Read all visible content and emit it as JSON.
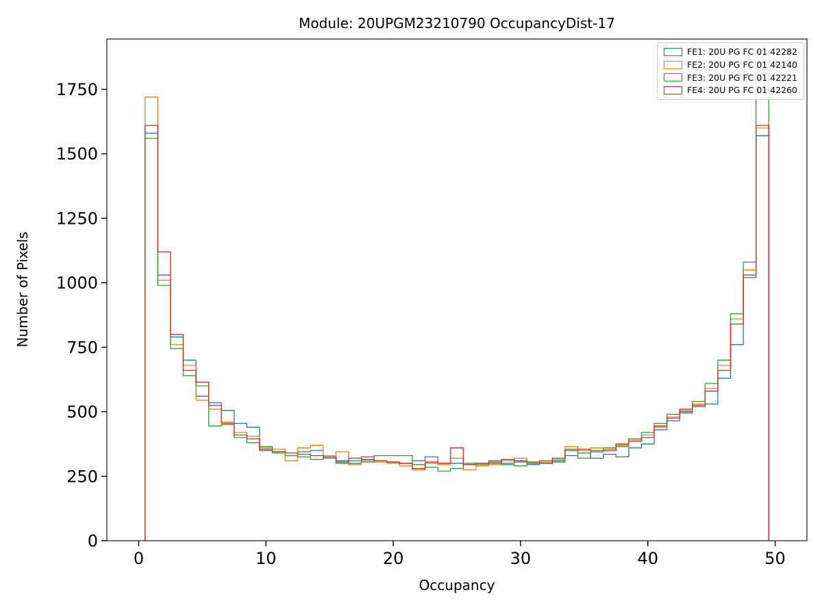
{
  "figure": {
    "background": "#ffffff"
  },
  "chart_data": {
    "type": "step-histogram",
    "title": "Module: 20UPGM23210790 OccupancyDist-17",
    "xlabel": "Occupancy",
    "ylabel": "Number of Pixels",
    "xlim": [
      -2.5,
      52.5
    ],
    "ylim": [
      0,
      1945
    ],
    "xticks": [
      0,
      10,
      20,
      30,
      40,
      50
    ],
    "yticks": [
      0,
      250,
      500,
      750,
      1000,
      1250,
      1500,
      1750
    ],
    "grid": false,
    "legend_position": "upper right",
    "bin_width": 1,
    "bin_centers": [
      1,
      2,
      3,
      4,
      5,
      6,
      7,
      8,
      9,
      10,
      11,
      12,
      13,
      14,
      15,
      16,
      17,
      18,
      19,
      20,
      21,
      22,
      23,
      24,
      25,
      26,
      27,
      28,
      29,
      30,
      31,
      32,
      33,
      34,
      35,
      36,
      37,
      38,
      39,
      40,
      41,
      42,
      43,
      44,
      45,
      46,
      47,
      48,
      49
    ],
    "series": [
      {
        "name": "FE1: 20U PG FC 01 42282",
        "color": "#1f77b4",
        "values": [
          1580,
          1030,
          790,
          700,
          560,
          535,
          505,
          455,
          440,
          355,
          345,
          330,
          345,
          350,
          320,
          305,
          300,
          325,
          310,
          305,
          300,
          310,
          325,
          300,
          300,
          295,
          300,
          310,
          300,
          305,
          295,
          300,
          310,
          330,
          340,
          320,
          335,
          325,
          360,
          375,
          430,
          465,
          500,
          520,
          530,
          630,
          760,
          1020,
          1570
        ]
      },
      {
        "name": "FE2: 20U PG FC 01 42140",
        "color": "#ff7f0e",
        "values": [
          1720,
          1010,
          760,
          680,
          545,
          510,
          460,
          420,
          405,
          360,
          355,
          310,
          360,
          370,
          330,
          345,
          295,
          310,
          305,
          300,
          290,
          275,
          300,
          295,
          320,
          275,
          290,
          295,
          310,
          320,
          300,
          305,
          315,
          365,
          350,
          360,
          355,
          370,
          390,
          410,
          440,
          480,
          505,
          530,
          590,
          680,
          860,
          1050,
          1600
        ]
      },
      {
        "name": "FE3: 20U PG FC 01 42221",
        "color": "#2ca02c",
        "values": [
          1560,
          990,
          745,
          640,
          600,
          445,
          450,
          400,
          380,
          365,
          340,
          330,
          325,
          315,
          320,
          300,
          310,
          305,
          330,
          330,
          330,
          295,
          285,
          270,
          280,
          300,
          295,
          305,
          295,
          290,
          300,
          310,
          305,
          355,
          320,
          350,
          360,
          365,
          395,
          420,
          455,
          490,
          495,
          540,
          610,
          700,
          880,
          1080,
          1900
        ]
      },
      {
        "name": "FE4: 20U PG FC 01 42260",
        "color": "#d62728",
        "values": [
          1610,
          1120,
          800,
          660,
          615,
          525,
          455,
          410,
          395,
          350,
          345,
          340,
          335,
          330,
          325,
          310,
          320,
          315,
          310,
          305,
          300,
          280,
          305,
          300,
          360,
          295,
          300,
          300,
          315,
          310,
          305,
          300,
          320,
          350,
          355,
          345,
          350,
          375,
          385,
          400,
          445,
          475,
          510,
          525,
          580,
          660,
          840,
          1030,
          1610
        ]
      }
    ]
  }
}
